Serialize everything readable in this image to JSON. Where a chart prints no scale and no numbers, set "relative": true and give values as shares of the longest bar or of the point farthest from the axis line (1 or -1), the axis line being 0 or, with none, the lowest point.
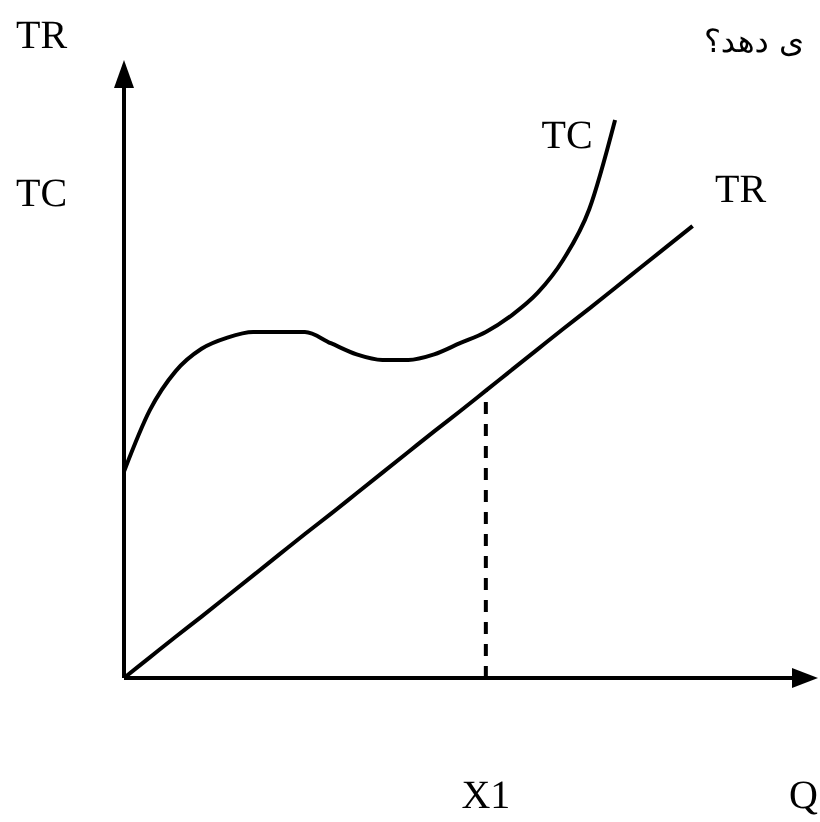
{
  "chart_data": {
    "type": "line",
    "relative": true,
    "ylabel": "TR",
    "xlabel": "Q",
    "legend": false,
    "categories": [
      null,
      null,
      null,
      null,
      null,
      null,
      null,
      null,
      null,
      null,
      null,
      null,
      null,
      null,
      null,
      null,
      null,
      null,
      null,
      null,
      null,
      null,
      null
    ],
    "series": [
      {
        "name": "TC",
        "color": "#000000",
        "values": [
          0.37,
          0.48,
          0.55,
          0.59,
          0.61,
          0.62,
          0.62,
          0.62,
          0.6,
          0.58,
          0.57,
          0.57,
          0.58,
          0.6,
          0.62,
          0.65,
          0.69,
          0.75,
          0.84,
          1,
          null,
          null,
          null
        ]
      },
      {
        "name": "TR",
        "color": "#000000",
        "values": [
          0,
          0.037,
          0.074,
          0.11,
          0.147,
          0.184,
          0.221,
          0.258,
          0.294,
          0.331,
          0.368,
          0.405,
          0.442,
          0.478,
          0.515,
          0.552,
          0.589,
          0.626,
          0.662,
          0.699,
          0.736,
          0.773,
          0.81
        ]
      }
    ],
    "annotations": [
      "TC",
      "ی دهد؟",
      "X1"
    ]
  }
}
